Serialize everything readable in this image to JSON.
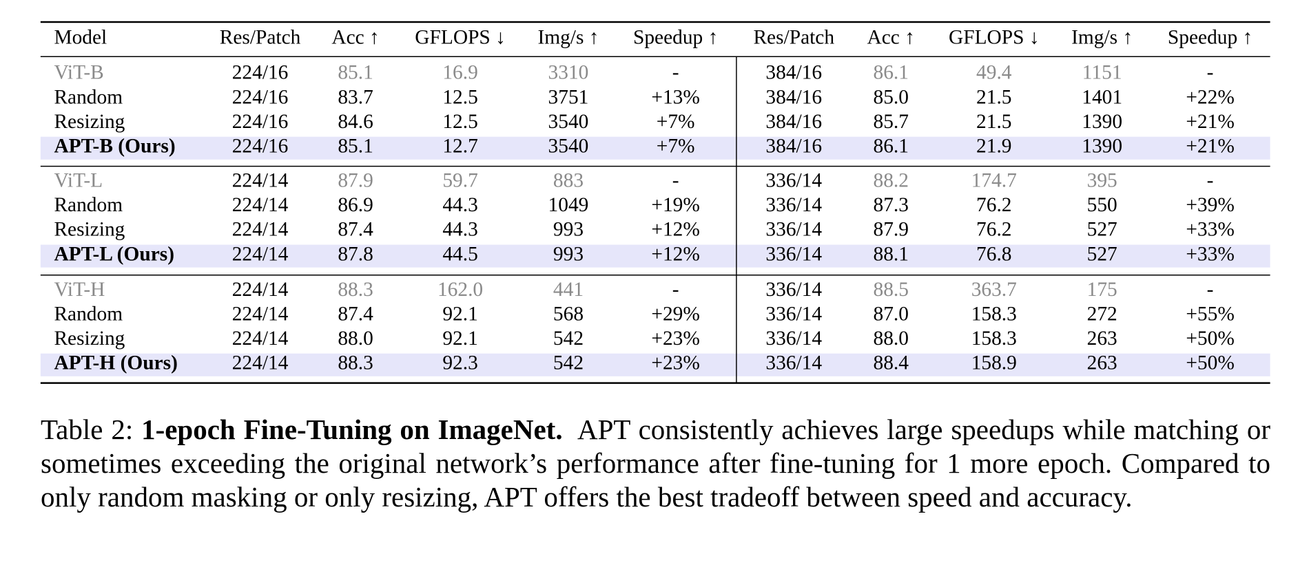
{
  "table": {
    "header": [
      "Model",
      "Res/Patch",
      "Acc ↑",
      "GFLOPS ↓",
      "Img/s ↑",
      "Speedup ↑",
      "Res/Patch",
      "Acc ↑",
      "GFLOPS ↓",
      "Img/s ↑",
      "Speedup ↑"
    ],
    "groups": [
      [
        [
          "ViT-B",
          "224/16",
          "85.1",
          "16.9",
          "3310",
          "-",
          "384/16",
          "86.1",
          "49.4",
          "1151",
          "-"
        ],
        [
          "Random",
          "224/16",
          "83.7",
          "12.5",
          "3751",
          "+13%",
          "384/16",
          "85.0",
          "21.5",
          "1401",
          "+22%"
        ],
        [
          "Resizing",
          "224/16",
          "84.6",
          "12.5",
          "3540",
          "+7%",
          "384/16",
          "85.7",
          "21.5",
          "1390",
          "+21%"
        ],
        [
          "APT-B (Ours)",
          "224/16",
          "85.1",
          "12.7",
          "3540",
          "+7%",
          "384/16",
          "86.1",
          "21.9",
          "1390",
          "+21%"
        ]
      ],
      [
        [
          "ViT-L",
          "224/14",
          "87.9",
          "59.7",
          "883",
          "-",
          "336/14",
          "88.2",
          "174.7",
          "395",
          "-"
        ],
        [
          "Random",
          "224/14",
          "86.9",
          "44.3",
          "1049",
          "+19%",
          "336/14",
          "87.3",
          "76.2",
          "550",
          "+39%"
        ],
        [
          "Resizing",
          "224/14",
          "87.4",
          "44.3",
          "993",
          "+12%",
          "336/14",
          "87.9",
          "76.2",
          "527",
          "+33%"
        ],
        [
          "APT-L (Ours)",
          "224/14",
          "87.8",
          "44.5",
          "993",
          "+12%",
          "336/14",
          "88.1",
          "76.8",
          "527",
          "+33%"
        ]
      ],
      [
        [
          "ViT-H",
          "224/14",
          "88.3",
          "162.0",
          "441",
          "-",
          "336/14",
          "88.5",
          "363.7",
          "175",
          "-"
        ],
        [
          "Random",
          "224/14",
          "87.4",
          "92.1",
          "568",
          "+29%",
          "336/14",
          "87.0",
          "158.3",
          "272",
          "+55%"
        ],
        [
          "Resizing",
          "224/14",
          "88.0",
          "92.1",
          "542",
          "+23%",
          "336/14",
          "88.0",
          "158.3",
          "263",
          "+50%"
        ],
        [
          "APT-H (Ours)",
          "224/14",
          "88.3",
          "92.3",
          "542",
          "+23%",
          "336/14",
          "88.4",
          "158.9",
          "263",
          "+50%"
        ]
      ]
    ]
  },
  "caption": {
    "label": "Table 2:",
    "title": "1-epoch Fine-Tuning on ImageNet.",
    "text": "APT consistently achieves large speedups while matching or sometimes exceeding the original network’s performance after fine-tuning for 1 more epoch. Compared to only random masking or only resizing, APT offers the best tradeoff between speed and accuracy."
  }
}
